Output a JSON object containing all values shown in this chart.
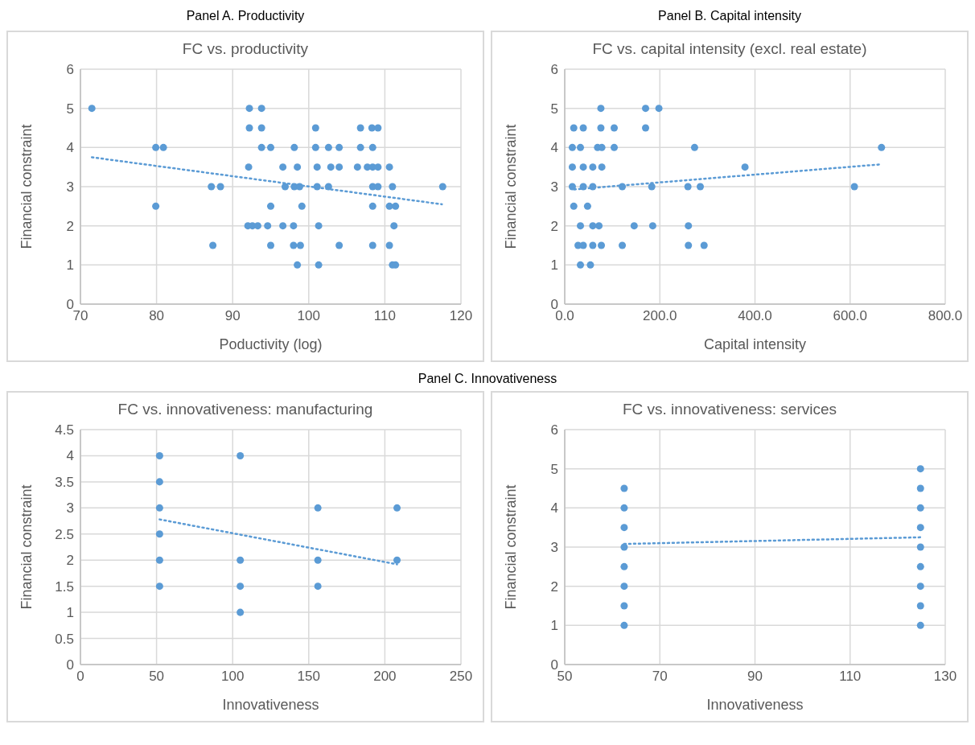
{
  "chart_data": [
    {
      "type": "scatter",
      "subtitle": "Panel A. Productivity",
      "title": "FC vs. productivity",
      "xlabel": "Poductivity (log)",
      "ylabel": "Financial constraint",
      "xlim": [
        70,
        120
      ],
      "xticks": [
        70,
        80,
        90,
        100,
        110,
        120
      ],
      "ylim": [
        0,
        6
      ],
      "yticks": [
        0,
        1,
        2,
        3,
        4,
        5,
        6
      ],
      "grid": true,
      "marker": "circle",
      "series": [
        {
          "color": "#5b9bd5",
          "x": [
            71.5,
            92.2,
            93.8,
            92.2,
            93.8,
            100.9,
            106.8,
            108.3,
            109.1,
            79.9,
            80.9,
            93.8,
            95.0,
            98.1,
            100.9,
            102.6,
            104.0,
            106.8,
            108.4,
            92.1,
            96.6,
            98.5,
            101.1,
            102.9,
            104.0,
            106.4,
            107.7,
            108.4,
            109.1,
            110.6,
            87.2,
            88.4,
            96.9,
            98.1,
            98.8,
            101.1,
            102.6,
            108.4,
            109.1,
            111.0,
            117.6,
            79.9,
            95.0,
            99.1,
            108.4,
            110.6,
            111.4,
            92.0,
            92.6,
            93.3,
            94.6,
            96.6,
            98.0,
            101.3,
            111.2,
            87.4,
            95.0,
            98.0,
            98.9,
            104.0,
            108.4,
            110.6,
            98.5,
            101.3,
            111.0,
            111.4
          ],
          "values": [
            5,
            5,
            5,
            4.5,
            4.5,
            4.5,
            4.5,
            4.5,
            4.5,
            4,
            4,
            4,
            4,
            4,
            4,
            4,
            4,
            4,
            4,
            3.5,
            3.5,
            3.5,
            3.5,
            3.5,
            3.5,
            3.5,
            3.5,
            3.5,
            3.5,
            3.5,
            3,
            3,
            3,
            3,
            3,
            3,
            3,
            3,
            3,
            3,
            3,
            2.5,
            2.5,
            2.5,
            2.5,
            2.5,
            2.5,
            2,
            2,
            2,
            2,
            2,
            2,
            2,
            2,
            1.5,
            1.5,
            1.5,
            1.5,
            1.5,
            1.5,
            1.5,
            1,
            1,
            1,
            1
          ]
        },
        {
          "type": "line",
          "color": "#5b9bd5",
          "line_style": "dotted",
          "marker": "none",
          "x": [
            71.5,
            117.5
          ],
          "values": [
            3.75,
            2.55
          ]
        }
      ]
    },
    {
      "type": "scatter",
      "subtitle": "Panel B. Capital intensity",
      "title": "FC vs. capital intensity (excl. real estate)",
      "xlabel": "Capital intensity",
      "ylabel": "Financial constraint",
      "xlim": [
        0,
        800
      ],
      "xticks": [
        {
          "value": 0,
          "label": "0.0"
        },
        {
          "value": 200,
          "label": "200.0"
        },
        {
          "value": 400,
          "label": "400.0"
        },
        {
          "value": 600,
          "label": "600.0"
        },
        {
          "value": 800,
          "label": "800.0"
        }
      ],
      "ylim": [
        0,
        6
      ],
      "yticks": [
        0,
        1,
        2,
        3,
        4,
        5,
        6
      ],
      "grid": true,
      "marker": "circle",
      "series": [
        {
          "color": "#5b9bd5",
          "x": [
            76,
            170,
            198,
            19,
            39,
            76,
            104,
            170,
            16,
            33,
            69,
            78,
            104,
            273,
            666,
            16,
            39,
            59,
            78,
            379,
            16,
            39,
            59,
            121,
            183,
            259,
            285,
            609,
            19,
            48,
            33,
            59,
            72,
            146,
            185,
            260,
            28,
            39,
            59,
            77,
            121,
            260,
            293,
            33,
            54
          ],
          "values": [
            5,
            5,
            5,
            4.5,
            4.5,
            4.5,
            4.5,
            4.5,
            4,
            4,
            4,
            4,
            4,
            4,
            4,
            3.5,
            3.5,
            3.5,
            3.5,
            3.5,
            3,
            3,
            3,
            3,
            3,
            3,
            3,
            3,
            2.5,
            2.5,
            2,
            2,
            2,
            2,
            2,
            2,
            1.5,
            1.5,
            1.5,
            1.5,
            1.5,
            1.5,
            1.5,
            1,
            1
          ]
        },
        {
          "type": "line",
          "color": "#5b9bd5",
          "line_style": "dotted",
          "marker": "none",
          "x": [
            20,
            665
          ],
          "values": [
            2.93,
            3.57
          ]
        }
      ]
    },
    {
      "type": "scatter",
      "subtitle": "Panel C. Innovativeness",
      "title": "FC vs. innovativeness: manufacturing",
      "xlabel": "Innovativeness",
      "ylabel": "Financial constraint",
      "xlim": [
        0,
        250
      ],
      "xticks": [
        0,
        50,
        100,
        150,
        200,
        250
      ],
      "ylim": [
        0,
        4.5
      ],
      "yticks": [
        0,
        0.5,
        1,
        1.5,
        2,
        2.5,
        3,
        3.5,
        4,
        4.5
      ],
      "grid": true,
      "marker": "circle",
      "series": [
        {
          "color": "#5b9bd5",
          "x": [
            52,
            52,
            52,
            52,
            52,
            52,
            105,
            105,
            105,
            105,
            156,
            156,
            156,
            208,
            208
          ],
          "values": [
            4,
            3.5,
            3,
            2.5,
            2,
            1.5,
            4,
            2,
            1.5,
            1,
            3,
            2,
            1.5,
            3,
            2
          ]
        },
        {
          "type": "line",
          "color": "#5b9bd5",
          "line_style": "dotted",
          "marker": "none",
          "x": [
            52,
            208
          ],
          "values": [
            2.78,
            1.92
          ]
        }
      ]
    },
    {
      "type": "scatter",
      "title": "FC vs. innovativeness: services",
      "xlabel": "Innovativeness",
      "ylabel": "Financial constraint",
      "xlim": [
        50,
        130
      ],
      "xticks": [
        50,
        70,
        90,
        110,
        130
      ],
      "ylim": [
        0,
        6
      ],
      "yticks": [
        0,
        1,
        2,
        3,
        4,
        5,
        6
      ],
      "grid": true,
      "marker": "circle",
      "series": [
        {
          "color": "#5b9bd5",
          "x": [
            62.5,
            62.5,
            62.5,
            62.5,
            62.5,
            62.5,
            62.5,
            62.5,
            124.8,
            124.8,
            124.8,
            124.8,
            124.8,
            124.8,
            124.8,
            124.8,
            124.8
          ],
          "values": [
            1,
            1.5,
            2,
            2.5,
            3,
            3.5,
            4,
            4.5,
            1,
            1.5,
            2,
            2.5,
            3,
            3.5,
            4,
            4.5,
            5
          ]
        },
        {
          "type": "line",
          "color": "#5b9bd5",
          "line_style": "dotted",
          "marker": "none",
          "x": [
            62.5,
            124.8
          ],
          "values": [
            3.08,
            3.25
          ]
        }
      ]
    }
  ]
}
